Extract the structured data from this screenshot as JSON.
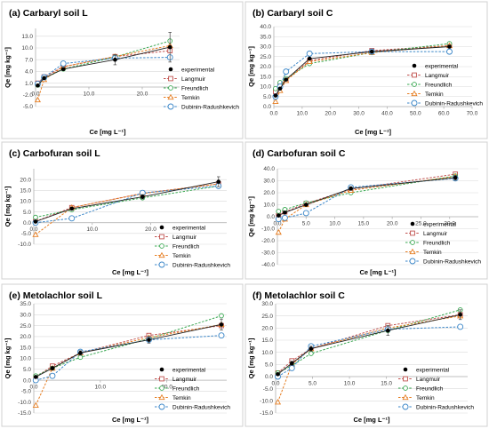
{
  "colors": {
    "experimental": "#000000",
    "langmuir": "#c0504d",
    "freundlich": "#3aa852",
    "temkin": "#e67e22",
    "dubinin": "#3a86c8"
  },
  "legend_labels": [
    "experimental",
    "Langmuir",
    "Freundlich",
    "Temkin",
    "Dubinin-Radushkevich"
  ],
  "chart_data": [
    {
      "type": "scatter",
      "title": "(a)        Carbaryl  soil L",
      "xlabel": "Ce [mg L⁻¹]",
      "ylabel": "Qe [mg kg⁻¹]",
      "xlim": [
        0,
        27
      ],
      "ylim": [
        -5,
        15
      ],
      "xticks": [
        0,
        10,
        20
      ],
      "xtick_labels": [
        "0.0",
        "10.0",
        "20.0"
      ],
      "yticks": [
        -5,
        -2,
        1,
        4,
        7,
        10,
        13
      ],
      "ytick_labels": [
        "-5.0",
        "-2.0",
        "1.0",
        "4.0",
        "7.0",
        "10.0",
        "13.0"
      ],
      "legend_position": "right",
      "series": [
        {
          "name": "experimental",
          "key": "experimental",
          "x": [
            0.4,
            1.6,
            5.2,
            14.9,
            25.2
          ],
          "y": [
            0.4,
            2.3,
            4.6,
            7.0,
            10.2
          ],
          "err": [
            0.3,
            0.3,
            0.4,
            1.3,
            3.8
          ]
        },
        {
          "name": "Langmuir",
          "key": "langmuir",
          "x": [
            0.4,
            1.6,
            5.2,
            14.9,
            25.2
          ],
          "y": [
            1.0,
            2.6,
            5.2,
            7.8,
            9.3
          ]
        },
        {
          "name": "Freundlich",
          "key": "freundlich",
          "x": [
            0.4,
            1.6,
            5.2,
            14.9,
            25.2
          ],
          "y": [
            0.5,
            2.2,
            4.6,
            7.7,
            11.8
          ]
        },
        {
          "name": "Temkin",
          "key": "temkin",
          "x": [
            0.4,
            1.6,
            5.2,
            14.9,
            25.2
          ],
          "y": [
            -3.3,
            1.9,
            5.2,
            7.8,
            10.6
          ]
        },
        {
          "name": "Dubinin-Radushkevich",
          "key": "dubinin",
          "x": [
            0.4,
            1.6,
            5.2,
            14.9,
            25.2
          ],
          "y": [
            0.8,
            2.5,
            6.0,
            7.4,
            7.6
          ]
        }
      ]
    },
    {
      "type": "scatter",
      "title": "(b)        Carbaryl  soil C",
      "xlabel": "Ce [mg L⁻¹]",
      "ylabel": "Qe [mg kg⁻¹]",
      "xlim": [
        0,
        70
      ],
      "ylim": [
        0,
        40
      ],
      "xticks": [
        0,
        10,
        20,
        30,
        40,
        50,
        60,
        70
      ],
      "xtick_labels": [
        "0.0",
        "10.0",
        "20.0",
        "30.0",
        "40.0",
        "50.0",
        "60.0",
        "70.0"
      ],
      "yticks": [
        0,
        5,
        10,
        15,
        20,
        25,
        30,
        35,
        40
      ],
      "ytick_labels": [
        "0.0",
        "5.0",
        "10.0",
        "15.0",
        "20.0",
        "25.0",
        "30.0",
        "35.0",
        "40.0"
      ],
      "legend_position": "bottom-right",
      "series": [
        {
          "name": "experimental",
          "key": "experimental",
          "x": [
            0.6,
            2.2,
            4.3,
            12.6,
            34.6,
            62.0
          ],
          "y": [
            5.5,
            9.0,
            13.5,
            24.0,
            27.5,
            30.0
          ]
        },
        {
          "name": "Langmuir",
          "key": "langmuir",
          "x": [
            0.6,
            2.2,
            4.3,
            12.6,
            34.6,
            62.0
          ],
          "y": [
            7.5,
            10.5,
            13.5,
            23.0,
            28.0,
            30.5
          ]
        },
        {
          "name": "Freundlich",
          "key": "freundlich",
          "x": [
            0.6,
            2.2,
            4.3,
            12.6,
            34.6,
            62.0
          ],
          "y": [
            9.0,
            12.0,
            14.0,
            21.5,
            27.0,
            31.5
          ]
        },
        {
          "name": "Temkin",
          "key": "temkin",
          "x": [
            0.6,
            2.2,
            4.3,
            12.6,
            34.6,
            62.0
          ],
          "y": [
            2.5,
            8.0,
            13.0,
            22.5,
            27.0,
            30.5
          ]
        },
        {
          "name": "Dubinin-Radushkevich",
          "key": "dubinin",
          "x": [
            0.6,
            2.2,
            4.3,
            12.6,
            34.6,
            62.0
          ],
          "y": [
            5.0,
            10.0,
            17.5,
            26.5,
            27.5,
            27.5
          ]
        }
      ]
    },
    {
      "type": "scatter",
      "title": "(c)         Carbofuran  soil L",
      "xlabel": "Ce [mg L⁻¹]",
      "ylabel": "Qe [mg kg⁻¹]",
      "xlim": [
        0,
        33
      ],
      "ylim": [
        -10,
        25
      ],
      "xticks": [
        0,
        10,
        20
      ],
      "xtick_labels": [
        "0.0",
        "10.0",
        "20.0"
      ],
      "yticks": [
        -10,
        -5,
        0,
        5,
        10,
        15,
        20
      ],
      "ytick_labels": [
        "-10.0",
        "-5.0",
        "0.0",
        "5.0",
        "10.0",
        "15.0",
        "20.0"
      ],
      "legend_position": "bottom-right",
      "series": [
        {
          "name": "experimental",
          "key": "experimental",
          "x": [
            0.3,
            6.5,
            18.6,
            31.6
          ],
          "y": [
            0.5,
            6.5,
            12.0,
            19.0
          ],
          "err": [
            0.3,
            0.5,
            1.0,
            2.3
          ]
        },
        {
          "name": "Langmuir",
          "key": "langmuir",
          "x": [
            0.3,
            6.5,
            18.6,
            31.6
          ],
          "y": [
            0.6,
            7.0,
            13.6,
            18.0
          ]
        },
        {
          "name": "Freundlich",
          "key": "freundlich",
          "x": [
            0.3,
            6.5,
            18.6,
            31.6
          ],
          "y": [
            2.5,
            6.0,
            11.5,
            17.0
          ]
        },
        {
          "name": "Temkin",
          "key": "temkin",
          "x": [
            0.3,
            6.5,
            18.6,
            31.6
          ],
          "y": [
            -5.5,
            7.0,
            13.5,
            18.0
          ]
        },
        {
          "name": "Dubinin-Radushkevich",
          "key": "dubinin",
          "x": [
            0.3,
            6.5,
            18.6,
            31.6
          ],
          "y": [
            0.0,
            2.0,
            13.8,
            17.0
          ]
        }
      ]
    },
    {
      "type": "scatter",
      "title": "(d)          Carbofuran  soil C",
      "xlabel": "Ce [mg L⁻¹]",
      "ylabel": "Qe [mg kg⁻¹]",
      "xlim": [
        0,
        35
      ],
      "ylim": [
        -40,
        40
      ],
      "xticks": [
        0,
        5,
        10,
        15,
        20,
        25,
        30
      ],
      "xtick_labels": [
        "0.0",
        "5.0",
        "10.0",
        "15.0",
        "20.0",
        "25.0",
        "30.0"
      ],
      "yticks": [
        -40,
        -30,
        -20,
        -10,
        0,
        10,
        20,
        30,
        40
      ],
      "ytick_labels": [
        "-40.0",
        "-30.0",
        "-20.0",
        "-10.0",
        "0.0",
        "10.0",
        "20.0",
        "30.0",
        "40.0"
      ],
      "legend_position": "bottom-right",
      "series": [
        {
          "name": "experimental",
          "key": "experimental",
          "x": [
            0.2,
            1.3,
            5.0,
            12.8,
            31.0
          ],
          "y": [
            1.0,
            3.5,
            10.0,
            23.5,
            32.5
          ],
          "err": [
            0.5,
            0.5,
            1.0,
            1.5,
            2.0
          ]
        },
        {
          "name": "Langmuir",
          "key": "langmuir",
          "x": [
            0.2,
            1.3,
            5.0,
            12.8,
            31.0
          ],
          "y": [
            1.0,
            4.0,
            11.0,
            23.0,
            35.5
          ]
        },
        {
          "name": "Freundlich",
          "key": "freundlich",
          "x": [
            0.2,
            1.3,
            5.0,
            12.8,
            31.0
          ],
          "y": [
            4.5,
            6.0,
            11.5,
            20.0,
            34.0
          ]
        },
        {
          "name": "Temkin",
          "key": "temkin",
          "x": [
            0.2,
            1.3,
            5.0,
            12.8,
            31.0
          ],
          "y": [
            -13.0,
            -2.0,
            10.0,
            22.0,
            33.5
          ]
        },
        {
          "name": "Dubinin-Radushkevich",
          "key": "dubinin",
          "x": [
            0.2,
            1.3,
            5.0,
            12.8,
            31.0
          ],
          "y": [
            -2.0,
            -1.0,
            3.0,
            24.5,
            32.0
          ]
        }
      ]
    },
    {
      "type": "scatter",
      "title": "(e)         Metolachlor  soil L",
      "xlabel": "Ce [mg L⁻¹]",
      "ylabel": "Qe [mg kg⁻¹]",
      "xlim": [
        0,
        29
      ],
      "ylim": [
        -15,
        35
      ],
      "xticks": [
        0,
        10,
        20
      ],
      "xtick_labels": [
        "0.0",
        "10.0",
        "20.0"
      ],
      "yticks": [
        -15,
        -10,
        -5,
        0,
        5,
        10,
        15,
        20,
        25,
        30,
        35
      ],
      "ytick_labels": [
        "-15.0",
        "-10.0",
        "-5.0",
        "0.0",
        "5.0",
        "10.0",
        "15.0",
        "20.0",
        "25.0",
        "30.0",
        "35.0"
      ],
      "legend_position": "bottom-right",
      "series": [
        {
          "name": "experimental",
          "key": "experimental",
          "x": [
            0.3,
            2.8,
            7.0,
            17.3,
            28.2
          ],
          "y": [
            1.5,
            5.5,
            12.5,
            18.5,
            25.5
          ],
          "err": [
            0.5,
            0.8,
            1.0,
            1.5,
            2.5
          ]
        },
        {
          "name": "Langmuir",
          "key": "langmuir",
          "x": [
            0.3,
            2.8,
            7.0,
            17.3,
            28.2
          ],
          "y": [
            1.5,
            6.5,
            12.5,
            20.5,
            25.0
          ]
        },
        {
          "name": "Freundlich",
          "key": "freundlich",
          "x": [
            0.3,
            2.8,
            7.0,
            17.3,
            28.2
          ],
          "y": [
            2.0,
            5.5,
            10.5,
            19.0,
            29.5
          ]
        },
        {
          "name": "Temkin",
          "key": "temkin",
          "x": [
            0.3,
            2.8,
            7.0,
            17.3,
            28.2
          ],
          "y": [
            -11.5,
            5.5,
            12.5,
            19.5,
            25.5
          ]
        },
        {
          "name": "Dubinin-Radushkevich",
          "key": "dubinin",
          "x": [
            0.3,
            2.8,
            7.0,
            17.3,
            28.2
          ],
          "y": [
            0.0,
            2.0,
            13.0,
            18.5,
            20.5
          ]
        }
      ]
    },
    {
      "type": "scatter",
      "title": "(f)          Metolachlor  soil C",
      "xlabel": "Ce [mg L⁻¹]",
      "ylabel": "Qe [mg kg⁻¹]",
      "xlim": [
        0,
        26
      ],
      "ylim": [
        -15,
        30
      ],
      "xticks": [
        0,
        5,
        10,
        15
      ],
      "xtick_labels": [
        "0.0",
        "5.0",
        "10.0",
        "15.0"
      ],
      "yticks": [
        -15,
        -10,
        -5,
        0,
        5,
        10,
        15,
        20,
        25,
        30
      ],
      "ytick_labels": [
        "-15.0",
        "-10.0",
        "-5.0",
        "0.0",
        "5.0",
        "10.0",
        "15.0",
        "20.0",
        "25.0",
        "30.0"
      ],
      "legend_position": "bottom-right",
      "series": [
        {
          "name": "experimental",
          "key": "experimental",
          "x": [
            0.3,
            2.2,
            4.8,
            15.2,
            25.0
          ],
          "y": [
            1.0,
            5.5,
            11.5,
            19.0,
            25.5
          ],
          "err": [
            0.5,
            0.8,
            1.0,
            2.0,
            2.0
          ]
        },
        {
          "name": "Langmuir",
          "key": "langmuir",
          "x": [
            0.3,
            2.2,
            4.8,
            15.2,
            25.0
          ],
          "y": [
            1.5,
            6.5,
            11.5,
            21.0,
            25.5
          ]
        },
        {
          "name": "Freundlich",
          "key": "freundlich",
          "x": [
            0.3,
            2.2,
            4.8,
            15.2,
            25.0
          ],
          "y": [
            1.5,
            4.5,
            9.5,
            19.0,
            27.5
          ]
        },
        {
          "name": "Temkin",
          "key": "temkin",
          "x": [
            0.3,
            2.2,
            4.8,
            15.2,
            25.0
          ],
          "y": [
            -10.5,
            5.0,
            11.5,
            20.0,
            25.0
          ]
        },
        {
          "name": "Dubinin-Radushkevich",
          "key": "dubinin",
          "x": [
            0.3,
            2.2,
            4.8,
            15.2,
            25.0
          ],
          "y": [
            0.0,
            3.5,
            12.5,
            19.5,
            20.5
          ]
        }
      ]
    }
  ]
}
